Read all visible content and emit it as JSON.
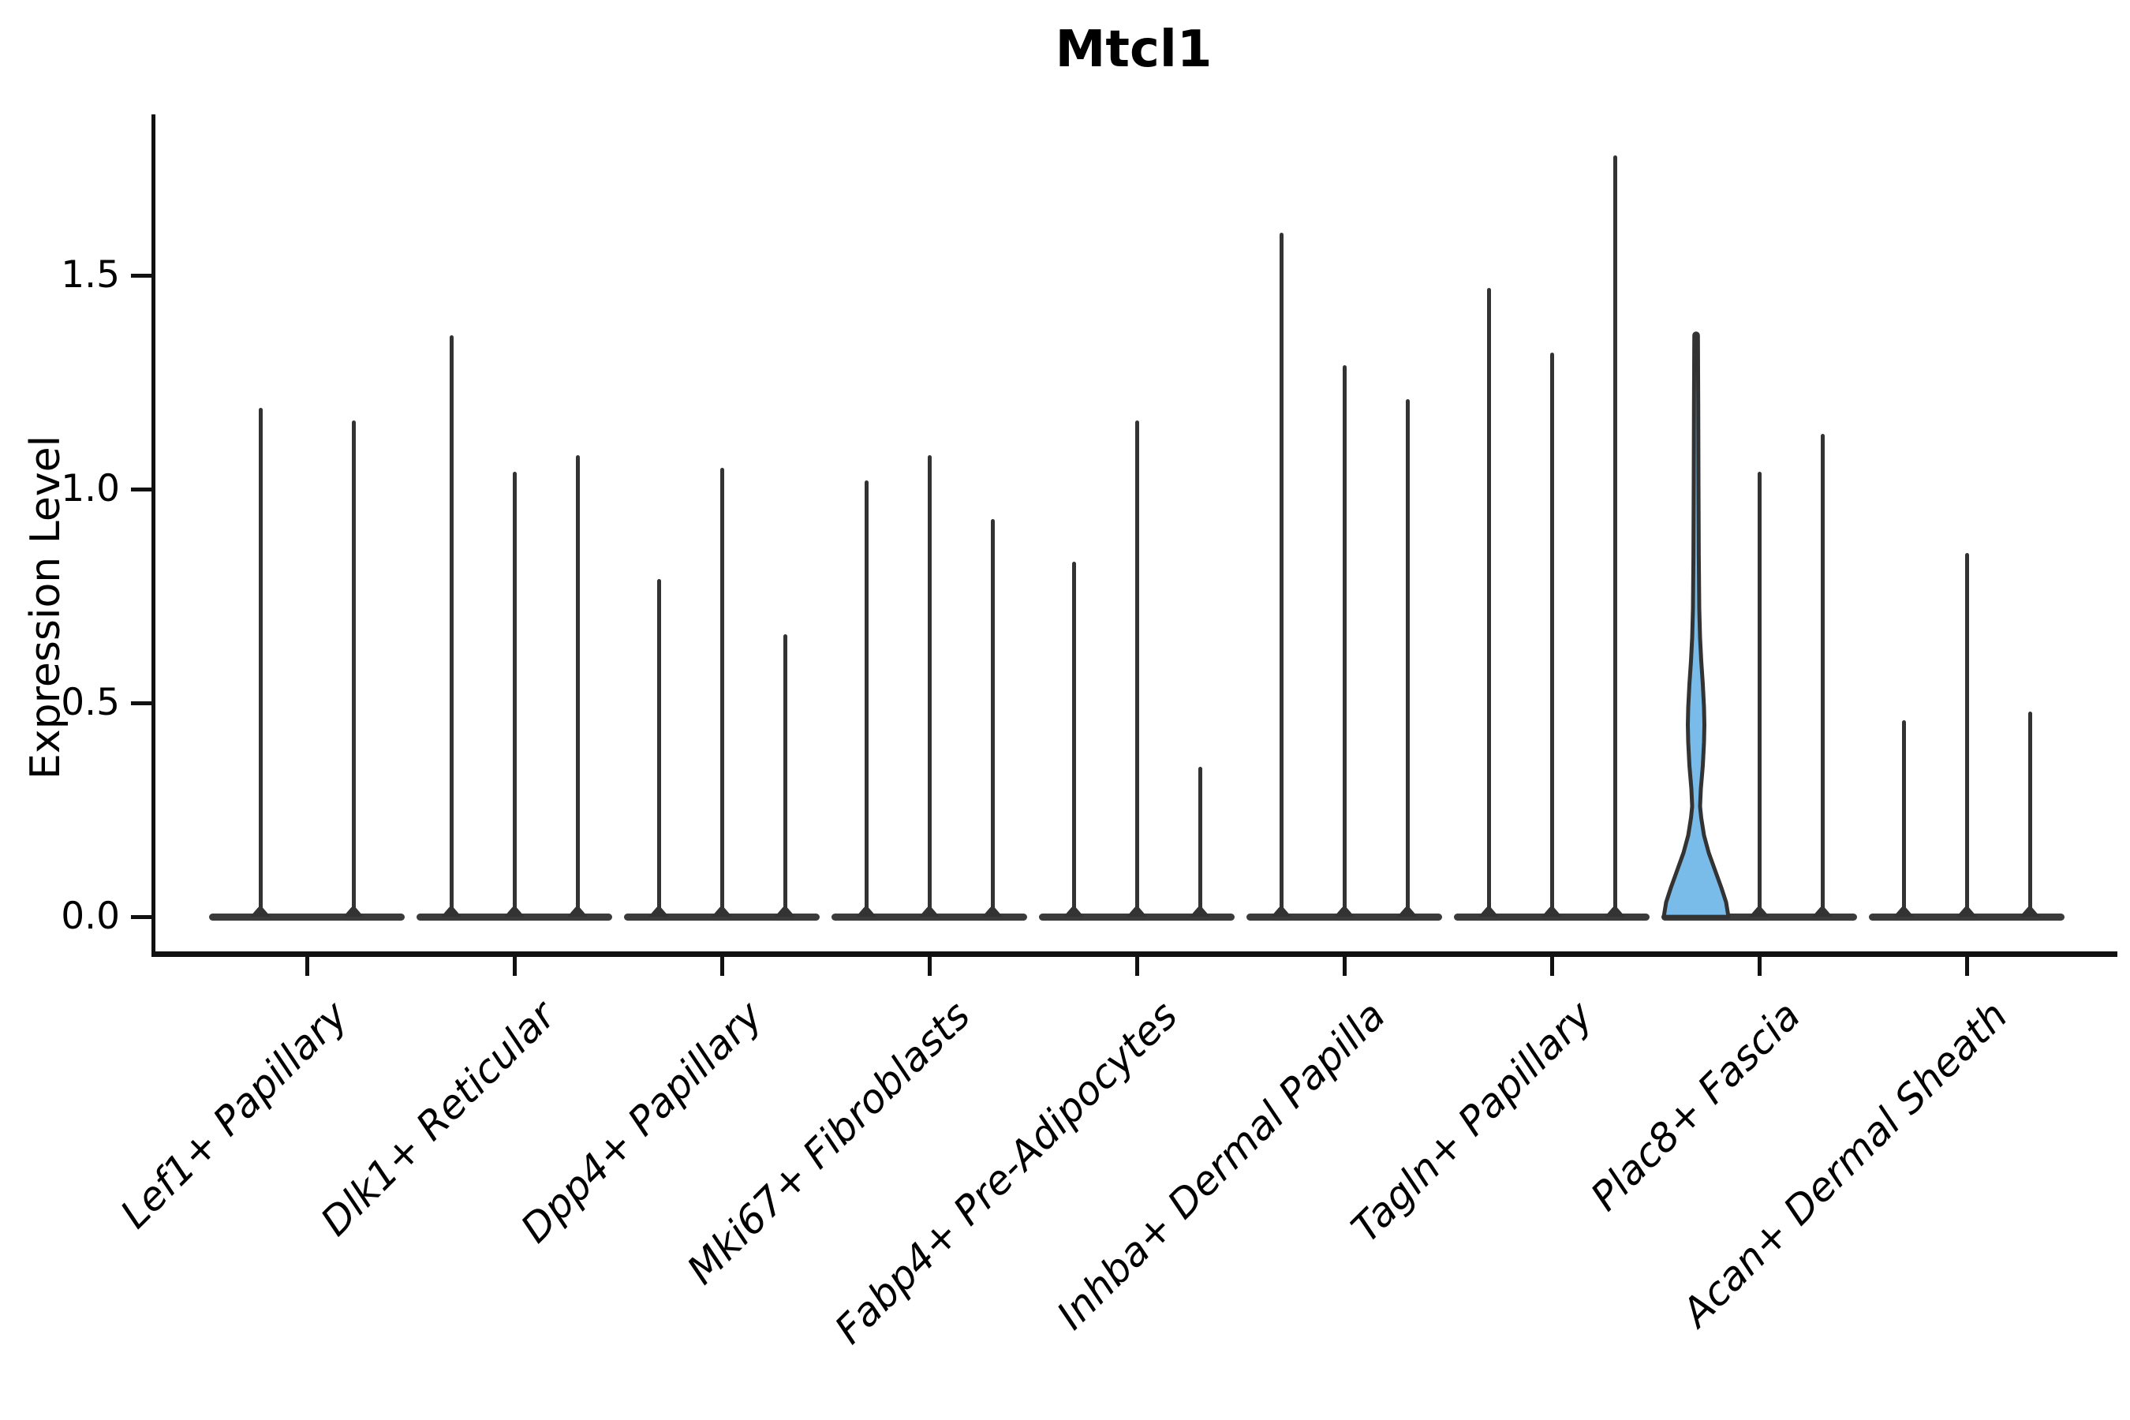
{
  "title": "Mtcl1",
  "axes": {
    "ylabel": "Expression Level",
    "ytick_labels": [
      "0.0",
      "0.5",
      "1.0",
      "1.5"
    ]
  },
  "chart_data": {
    "type": "violin",
    "title": "Mtcl1",
    "xlabel": "",
    "ylabel": "Expression Level",
    "ylim": [
      0,
      1.88
    ],
    "yticks": [
      0.0,
      0.5,
      1.0,
      1.5
    ],
    "ytick_labels": [
      "0.0",
      "0.5",
      "1.0",
      "1.5"
    ],
    "grid": false,
    "legend": "none",
    "x_tick_rotation": 45,
    "categories": [
      "Lef1+ Papillary",
      "Dlk1+ Reticular",
      "Dpp4+ Papillary",
      "Mki67+ Fibroblasts",
      "Fabp4+ Pre-Adipocytes",
      "Inhba+ Dermal Papilla",
      "Tagln+ Papillary",
      "Plac8+ Fascia",
      "Acan+ Dermal Sheath"
    ],
    "groups": [
      {
        "label": "Lef1+ Papillary",
        "violin_max": [
          1.19,
          1.16
        ],
        "highlight_index": null
      },
      {
        "label": "Dlk1+ Reticular",
        "violin_max": [
          1.36,
          1.04,
          1.08
        ],
        "highlight_index": null
      },
      {
        "label": "Dpp4+ Papillary",
        "violin_max": [
          0.79,
          1.05,
          0.66
        ],
        "highlight_index": null
      },
      {
        "label": "Mki67+ Fibroblasts",
        "violin_max": [
          1.02,
          1.08,
          0.93
        ],
        "highlight_index": null
      },
      {
        "label": "Fabp4+ Pre-Adipocytes",
        "violin_max": [
          0.83,
          1.16,
          0.35
        ],
        "highlight_index": null
      },
      {
        "label": "Inhba+ Dermal Papilla",
        "violin_max": [
          1.6,
          1.29,
          1.21
        ],
        "highlight_index": null
      },
      {
        "label": "Tagln+ Papillary",
        "violin_max": [
          1.47,
          1.32,
          1.78
        ],
        "highlight_index": null
      },
      {
        "label": "Plac8+ Fascia",
        "violin_max": [
          1.36,
          1.04,
          1.13
        ],
        "highlight_index": 0
      },
      {
        "label": "Acan+ Dermal Sheath",
        "violin_max": [
          0.46,
          0.85,
          0.48
        ],
        "highlight_index": null
      }
    ],
    "highlight": {
      "group": "Plac8+ Fascia",
      "violin": 0,
      "max": 1.36,
      "fill": "#79BCE9",
      "outline": "#333333",
      "pinch_at_fraction": 0.19,
      "bulge_at_fraction": 0.33,
      "profile": [
        [
          0.0,
          41
        ],
        [
          0.025,
          38
        ],
        [
          0.05,
          32
        ],
        [
          0.08,
          24
        ],
        [
          0.11,
          16
        ],
        [
          0.14,
          10
        ],
        [
          0.17,
          6.5
        ],
        [
          0.19,
          5.0
        ],
        [
          0.22,
          6.0
        ],
        [
          0.26,
          8.5
        ],
        [
          0.3,
          10.0
        ],
        [
          0.33,
          10.5
        ],
        [
          0.36,
          10.0
        ],
        [
          0.4,
          8.5
        ],
        [
          0.44,
          6.5
        ],
        [
          0.48,
          5.0
        ],
        [
          0.53,
          4.0
        ],
        [
          0.62,
          3.4
        ],
        [
          0.75,
          3.0
        ],
        [
          0.88,
          2.7
        ],
        [
          1.0,
          2.3
        ]
      ]
    },
    "colors": {
      "violin_line": "#333333",
      "baseline_bar": "#3b3b3b",
      "spine": "#111111",
      "highlight_fill": "#79BCE9",
      "background": "#ffffff"
    }
  }
}
